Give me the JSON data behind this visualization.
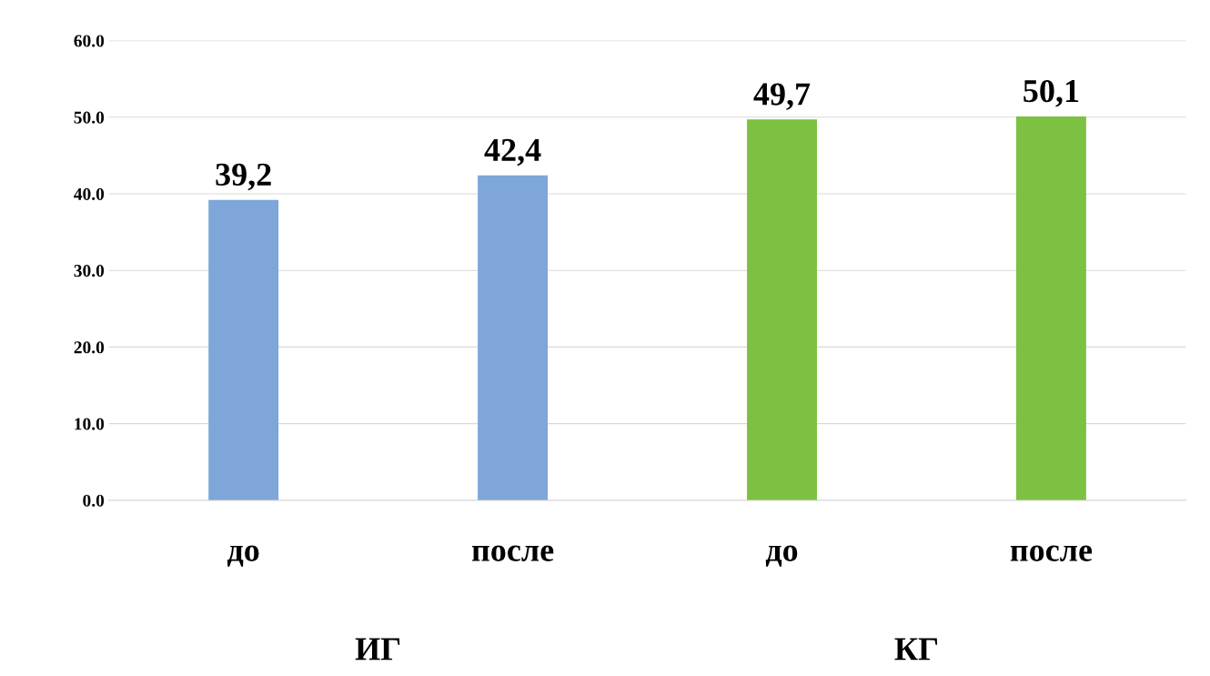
{
  "chart_data": {
    "type": "bar",
    "categories": [
      "до",
      "после",
      "до",
      "после"
    ],
    "values": [
      39.2,
      42.4,
      49.7,
      50.1
    ],
    "colors": [
      "#7ea6d8",
      "#7ea6d8",
      "#7dc143",
      "#7dc143"
    ],
    "value_labels": [
      "39,2",
      "42,4",
      "49,7",
      "50,1"
    ],
    "annotations": [
      "ИГ",
      "КГ"
    ],
    "ylim": [
      0,
      60
    ],
    "yticks": [
      {
        "value": 0,
        "label": "0.0"
      },
      {
        "value": 10,
        "label": "10.0"
      },
      {
        "value": 20,
        "label": "20.0"
      },
      {
        "value": 30,
        "label": "30.0"
      },
      {
        "value": 40,
        "label": "40.0"
      },
      {
        "value": 50,
        "label": "50.0"
      },
      {
        "value": 60,
        "label": "60.0"
      }
    ],
    "grid": "y"
  }
}
